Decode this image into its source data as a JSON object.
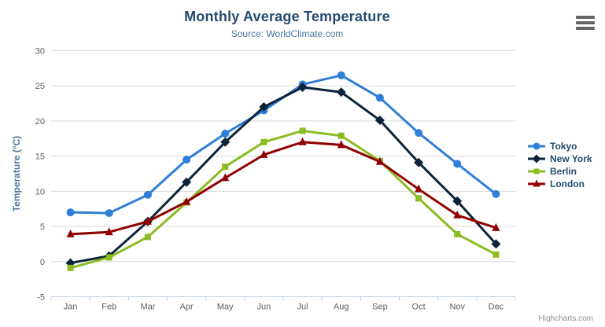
{
  "header": {
    "title": "Monthly Average Temperature",
    "subtitle": "Source: WorldClimate.com"
  },
  "chart_data": {
    "type": "line",
    "title": "Monthly Average Temperature",
    "subtitle": "Source: WorldClimate.com",
    "categories": [
      "Jan",
      "Feb",
      "Mar",
      "Apr",
      "May",
      "Jun",
      "Jul",
      "Aug",
      "Sep",
      "Oct",
      "Nov",
      "Dec"
    ],
    "xlabel": "",
    "ylabel": "Temperature (°C)",
    "ylim": [
      -5,
      30
    ],
    "yticks": [
      -5,
      0,
      5,
      10,
      15,
      20,
      25,
      30
    ],
    "grid": true,
    "legend_position": "right",
    "series": [
      {
        "name": "Tokyo",
        "color": "#2f7ed8",
        "marker": "circle",
        "values": [
          7.0,
          6.9,
          9.5,
          14.5,
          18.2,
          21.5,
          25.2,
          26.5,
          23.3,
          18.3,
          13.9,
          9.6
        ]
      },
      {
        "name": "New York",
        "color": "#0d233a",
        "marker": "diamond",
        "values": [
          -0.2,
          0.8,
          5.7,
          11.3,
          17.0,
          22.0,
          24.8,
          24.1,
          20.1,
          14.1,
          8.6,
          2.5
        ]
      },
      {
        "name": "Berlin",
        "color": "#8bbc21",
        "marker": "square",
        "values": [
          -0.9,
          0.6,
          3.5,
          8.4,
          13.5,
          17.0,
          18.6,
          17.9,
          14.3,
          9.0,
          3.9,
          1.0
        ]
      },
      {
        "name": "London",
        "color": "#910000",
        "marker": "triangle",
        "values": [
          3.9,
          4.2,
          5.7,
          8.5,
          11.9,
          15.2,
          17.0,
          16.6,
          14.2,
          10.3,
          6.6,
          4.8
        ]
      }
    ]
  },
  "credits": {
    "label": "Highcharts.com"
  },
  "colors": {
    "title": "#274b6d",
    "subtitle": "#4d759e",
    "axis_title": "#4d759e",
    "tick_label": "#606060",
    "grid_line": "#d8d8d8",
    "axis_line": "#c0d0e0",
    "legend_text": "#274b6d",
    "credits": "#909090",
    "menu_icon": "#666666"
  }
}
